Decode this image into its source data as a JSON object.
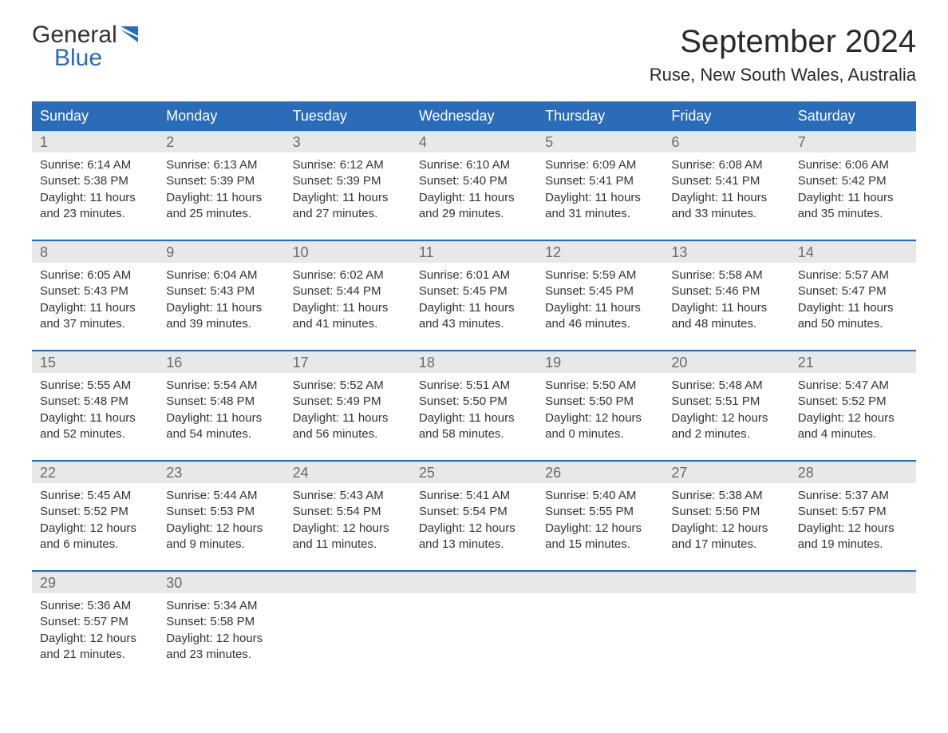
{
  "logo": {
    "top": "General",
    "bottom": "Blue",
    "icon_color": "#2a6cb8"
  },
  "title": "September 2024",
  "location": "Ruse, New South Wales, Australia",
  "colors": {
    "header_bg": "#2a6cb8",
    "header_text": "#ffffff",
    "daynum_bg": "#e8e8e8",
    "week_border": "#2a6cb8",
    "text": "#333333"
  },
  "day_names": [
    "Sunday",
    "Monday",
    "Tuesday",
    "Wednesday",
    "Thursday",
    "Friday",
    "Saturday"
  ],
  "labels": {
    "sunrise": "Sunrise:",
    "sunset": "Sunset:",
    "daylight": "Daylight:"
  },
  "weeks": [
    [
      {
        "n": "1",
        "sr": "6:14 AM",
        "ss": "5:38 PM",
        "dl": "11 hours and 23 minutes."
      },
      {
        "n": "2",
        "sr": "6:13 AM",
        "ss": "5:39 PM",
        "dl": "11 hours and 25 minutes."
      },
      {
        "n": "3",
        "sr": "6:12 AM",
        "ss": "5:39 PM",
        "dl": "11 hours and 27 minutes."
      },
      {
        "n": "4",
        "sr": "6:10 AM",
        "ss": "5:40 PM",
        "dl": "11 hours and 29 minutes."
      },
      {
        "n": "5",
        "sr": "6:09 AM",
        "ss": "5:41 PM",
        "dl": "11 hours and 31 minutes."
      },
      {
        "n": "6",
        "sr": "6:08 AM",
        "ss": "5:41 PM",
        "dl": "11 hours and 33 minutes."
      },
      {
        "n": "7",
        "sr": "6:06 AM",
        "ss": "5:42 PM",
        "dl": "11 hours and 35 minutes."
      }
    ],
    [
      {
        "n": "8",
        "sr": "6:05 AM",
        "ss": "5:43 PM",
        "dl": "11 hours and 37 minutes."
      },
      {
        "n": "9",
        "sr": "6:04 AM",
        "ss": "5:43 PM",
        "dl": "11 hours and 39 minutes."
      },
      {
        "n": "10",
        "sr": "6:02 AM",
        "ss": "5:44 PM",
        "dl": "11 hours and 41 minutes."
      },
      {
        "n": "11",
        "sr": "6:01 AM",
        "ss": "5:45 PM",
        "dl": "11 hours and 43 minutes."
      },
      {
        "n": "12",
        "sr": "5:59 AM",
        "ss": "5:45 PM",
        "dl": "11 hours and 46 minutes."
      },
      {
        "n": "13",
        "sr": "5:58 AM",
        "ss": "5:46 PM",
        "dl": "11 hours and 48 minutes."
      },
      {
        "n": "14",
        "sr": "5:57 AM",
        "ss": "5:47 PM",
        "dl": "11 hours and 50 minutes."
      }
    ],
    [
      {
        "n": "15",
        "sr": "5:55 AM",
        "ss": "5:48 PM",
        "dl": "11 hours and 52 minutes."
      },
      {
        "n": "16",
        "sr": "5:54 AM",
        "ss": "5:48 PM",
        "dl": "11 hours and 54 minutes."
      },
      {
        "n": "17",
        "sr": "5:52 AM",
        "ss": "5:49 PM",
        "dl": "11 hours and 56 minutes."
      },
      {
        "n": "18",
        "sr": "5:51 AM",
        "ss": "5:50 PM",
        "dl": "11 hours and 58 minutes."
      },
      {
        "n": "19",
        "sr": "5:50 AM",
        "ss": "5:50 PM",
        "dl": "12 hours and 0 minutes."
      },
      {
        "n": "20",
        "sr": "5:48 AM",
        "ss": "5:51 PM",
        "dl": "12 hours and 2 minutes."
      },
      {
        "n": "21",
        "sr": "5:47 AM",
        "ss": "5:52 PM",
        "dl": "12 hours and 4 minutes."
      }
    ],
    [
      {
        "n": "22",
        "sr": "5:45 AM",
        "ss": "5:52 PM",
        "dl": "12 hours and 6 minutes."
      },
      {
        "n": "23",
        "sr": "5:44 AM",
        "ss": "5:53 PM",
        "dl": "12 hours and 9 minutes."
      },
      {
        "n": "24",
        "sr": "5:43 AM",
        "ss": "5:54 PM",
        "dl": "12 hours and 11 minutes."
      },
      {
        "n": "25",
        "sr": "5:41 AM",
        "ss": "5:54 PM",
        "dl": "12 hours and 13 minutes."
      },
      {
        "n": "26",
        "sr": "5:40 AM",
        "ss": "5:55 PM",
        "dl": "12 hours and 15 minutes."
      },
      {
        "n": "27",
        "sr": "5:38 AM",
        "ss": "5:56 PM",
        "dl": "12 hours and 17 minutes."
      },
      {
        "n": "28",
        "sr": "5:37 AM",
        "ss": "5:57 PM",
        "dl": "12 hours and 19 minutes."
      }
    ],
    [
      {
        "n": "29",
        "sr": "5:36 AM",
        "ss": "5:57 PM",
        "dl": "12 hours and 21 minutes."
      },
      {
        "n": "30",
        "sr": "5:34 AM",
        "ss": "5:58 PM",
        "dl": "12 hours and 23 minutes."
      },
      null,
      null,
      null,
      null,
      null
    ]
  ]
}
